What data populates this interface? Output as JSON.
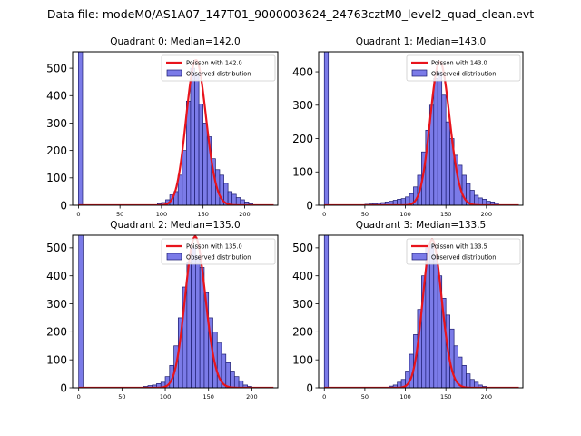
{
  "figure_title": "Data file: modeM0/AS1A07_147T01_9000003624_24763cztM0_level2_quad_clean.evt",
  "colors": {
    "bar_fill": "#7b7be8",
    "bar_edge": "#1b1b6e",
    "poisson_line": "#e8141c",
    "axes": "#000000"
  },
  "chart_data": [
    {
      "type": "bar",
      "title": "Quadrant 0: Median=142.0",
      "xlim": [
        -7,
        240
      ],
      "ylim": [
        0,
        560
      ],
      "xticks": [
        0,
        50,
        100,
        150,
        200
      ],
      "yticks": [
        0,
        100,
        200,
        300,
        400,
        500
      ],
      "bin_width": 5,
      "bins": [
        [
          0,
          560
        ],
        [
          95,
          6
        ],
        [
          100,
          10
        ],
        [
          105,
          20
        ],
        [
          110,
          38
        ],
        [
          115,
          50
        ],
        [
          120,
          110
        ],
        [
          125,
          200
        ],
        [
          130,
          380
        ],
        [
          135,
          500
        ],
        [
          140,
          480
        ],
        [
          145,
          370
        ],
        [
          150,
          300
        ],
        [
          155,
          250
        ],
        [
          160,
          170
        ],
        [
          165,
          130
        ],
        [
          170,
          110
        ],
        [
          175,
          80
        ],
        [
          180,
          50
        ],
        [
          185,
          40
        ],
        [
          190,
          28
        ],
        [
          195,
          20
        ],
        [
          200,
          12
        ],
        [
          205,
          6
        ]
      ],
      "poisson": {
        "mean": 142.0,
        "amplitude": 530
      },
      "legend": [
        "Poisson with 142.0",
        "Observed distribution"
      ]
    },
    {
      "type": "bar",
      "title": "Quadrant 1: Median=143.0",
      "xlim": [
        -7,
        245
      ],
      "ylim": [
        0,
        460
      ],
      "xticks": [
        0,
        50,
        100,
        150,
        200
      ],
      "yticks": [
        0,
        100,
        200,
        300,
        400
      ],
      "bin_width": 5,
      "bins": [
        [
          0,
          460
        ],
        [
          50,
          3
        ],
        [
          55,
          4
        ],
        [
          60,
          5
        ],
        [
          65,
          6
        ],
        [
          70,
          8
        ],
        [
          75,
          10
        ],
        [
          80,
          12
        ],
        [
          85,
          15
        ],
        [
          90,
          18
        ],
        [
          95,
          20
        ],
        [
          100,
          25
        ],
        [
          105,
          35
        ],
        [
          110,
          55
        ],
        [
          115,
          90
        ],
        [
          120,
          160
        ],
        [
          125,
          225
        ],
        [
          130,
          300
        ],
        [
          135,
          380
        ],
        [
          140,
          400
        ],
        [
          145,
          330
        ],
        [
          150,
          250
        ],
        [
          155,
          200
        ],
        [
          160,
          150
        ],
        [
          165,
          120
        ],
        [
          170,
          90
        ],
        [
          175,
          65
        ],
        [
          180,
          45
        ],
        [
          185,
          30
        ],
        [
          190,
          22
        ],
        [
          195,
          18
        ],
        [
          200,
          12
        ],
        [
          205,
          10
        ],
        [
          210,
          6
        ]
      ],
      "poisson": {
        "mean": 143.0,
        "amplitude": 430
      },
      "legend": [
        "Poisson with 143.0",
        "Observed distribution"
      ]
    },
    {
      "type": "bar",
      "title": "Quadrant 2: Median=135.0",
      "xlim": [
        -7,
        230
      ],
      "ylim": [
        0,
        545
      ],
      "xticks": [
        0,
        50,
        100,
        150,
        200
      ],
      "yticks": [
        0,
        100,
        200,
        300,
        400,
        500
      ],
      "bin_width": 5,
      "bins": [
        [
          0,
          545
        ],
        [
          75,
          5
        ],
        [
          80,
          8
        ],
        [
          85,
          10
        ],
        [
          90,
          15
        ],
        [
          95,
          20
        ],
        [
          100,
          40
        ],
        [
          105,
          80
        ],
        [
          110,
          150
        ],
        [
          115,
          250
        ],
        [
          120,
          360
        ],
        [
          125,
          450
        ],
        [
          130,
          500
        ],
        [
          135,
          470
        ],
        [
          140,
          430
        ],
        [
          145,
          340
        ],
        [
          150,
          250
        ],
        [
          155,
          200
        ],
        [
          160,
          160
        ],
        [
          165,
          120
        ],
        [
          170,
          90
        ],
        [
          175,
          60
        ],
        [
          180,
          40
        ],
        [
          185,
          25
        ],
        [
          190,
          10
        ],
        [
          195,
          5
        ]
      ],
      "poisson": {
        "mean": 135.0,
        "amplitude": 540
      },
      "legend": [
        "Poisson with 135.0",
        "Observed distribution"
      ]
    },
    {
      "type": "bar",
      "title": "Quadrant 3: Median=133.5",
      "xlim": [
        -7,
        245
      ],
      "ylim": [
        0,
        545
      ],
      "xticks": [
        0,
        50,
        100,
        150,
        200
      ],
      "yticks": [
        0,
        100,
        200,
        300,
        400,
        500
      ],
      "bin_width": 5,
      "bins": [
        [
          0,
          545
        ],
        [
          80,
          6
        ],
        [
          85,
          10
        ],
        [
          90,
          20
        ],
        [
          95,
          30
        ],
        [
          100,
          60
        ],
        [
          105,
          120
        ],
        [
          110,
          190
        ],
        [
          115,
          280
        ],
        [
          120,
          400
        ],
        [
          125,
          500
        ],
        [
          130,
          510
        ],
        [
          135,
          470
        ],
        [
          140,
          400
        ],
        [
          145,
          320
        ],
        [
          150,
          260
        ],
        [
          155,
          210
        ],
        [
          160,
          150
        ],
        [
          165,
          110
        ],
        [
          170,
          80
        ],
        [
          175,
          50
        ],
        [
          180,
          30
        ],
        [
          185,
          20
        ],
        [
          190,
          10
        ],
        [
          195,
          5
        ]
      ],
      "poisson": {
        "mean": 133.5,
        "amplitude": 530
      },
      "legend": [
        "Poisson with 133.5",
        "Observed distribution"
      ]
    }
  ]
}
